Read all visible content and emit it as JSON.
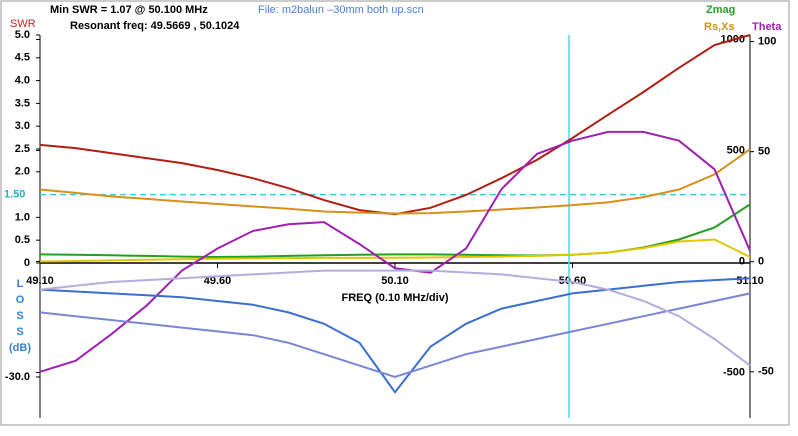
{
  "chart_data": {
    "type": "line",
    "title": "Min SWR =   1.07 @  50.100 MHz",
    "subtitle": "Resonant freq:  49.5669 , 50.1024",
    "file_label": "File: m2balun –30mm both up.scn",
    "x_label": "FREQ (0.10 MHz/div)",
    "y_label": "SWR",
    "loss_label": [
      "L",
      "O",
      "S",
      "S",
      "(dB)"
    ],
    "axis_names": [
      {
        "text": "Zmag",
        "color": "#22a022"
      },
      {
        "text": "Rs,Xs",
        "color": "#d8901c"
      },
      {
        "text": "Theta",
        "color": "#a020b0"
      }
    ],
    "x": [
      49.1,
      49.2,
      49.3,
      49.4,
      49.5,
      49.6,
      49.7,
      49.8,
      49.9,
      50.0,
      50.1,
      50.2,
      50.3,
      50.4,
      50.5,
      50.6,
      50.7,
      50.8,
      50.9,
      51.0,
      51.1
    ],
    "xlim": [
      49.1,
      51.1
    ],
    "xticks": [
      {
        "value": 49.1,
        "label": "49.10"
      },
      {
        "value": 49.6,
        "label": "49.60"
      },
      {
        "value": 50.1,
        "label": "50.10"
      },
      {
        "value": 50.6,
        "label": "50.60"
      },
      {
        "value": 51.1,
        "label": "51.10"
      }
    ],
    "ylim": [
      -3.4,
      5
    ],
    "yticks": [
      {
        "value": 5,
        "label": "5.0"
      },
      4.5,
      {
        "value": 4,
        "label": "4.0"
      },
      3.5,
      {
        "value": 3,
        "label": "3.0"
      },
      2.5,
      {
        "value": 2,
        "label": "2.0"
      },
      {
        "value": 1,
        "label": "1.0"
      },
      0.5,
      0
    ],
    "y2lim": [
      -705,
      1020
    ],
    "y2ticks": [
      1000,
      500,
      0,
      -500
    ],
    "y3lim": [
      -71,
      103
    ],
    "y3ticks": [
      100,
      50,
      0,
      -50
    ],
    "loss_lim": [
      -40.8,
      0
    ],
    "loss_ticks": [
      {
        "value": -30,
        "label": "-30.0"
      }
    ],
    "swr_ref": {
      "value": 1.5,
      "label": "1.50"
    },
    "marker_x": 50.59,
    "series": [
      {
        "name": "SWR",
        "color": "#b01e14",
        "axis": "y",
        "values": [
          2.59,
          2.52,
          2.41,
          2.3,
          2.19,
          2.04,
          1.86,
          1.64,
          1.38,
          1.16,
          1.07,
          1.21,
          1.49,
          1.86,
          2.26,
          2.74,
          3.25,
          3.75,
          4.28,
          4.78,
          5.0
        ]
      },
      {
        "color": "#22a022",
        "axis": "y2",
        "values": [
          32,
          30,
          28,
          25,
          22,
          20,
          22,
          25,
          28,
          30,
          32,
          32,
          30,
          28,
          27,
          30,
          40,
          63,
          99,
          153,
          257
        ]
      },
      {
        "color": "#d8901c",
        "axis": "y2",
        "values": [
          324,
          309,
          293,
          282,
          270,
          259,
          248,
          237,
          225,
          220,
          216,
          218,
          225,
          234,
          243,
          254,
          266,
          290,
          324,
          392,
          505
        ]
      },
      {
        "color": "#e0c800",
        "axis": "y2",
        "values": [
          0,
          2,
          5,
          8,
          10,
          12,
          14,
          15,
          16,
          16,
          17,
          18,
          20,
          22,
          25,
          30,
          40,
          60,
          90,
          99,
          20
        ]
      },
      {
        "color": "#a020b0",
        "axis": "y3",
        "values": [
          -50,
          -45,
          -33,
          -20,
          -4,
          6,
          14,
          17,
          18,
          8,
          -3,
          -5,
          6,
          33,
          49,
          55,
          59,
          59,
          55,
          42,
          5
        ]
      },
      {
        "color": "#3a6fd0",
        "axis": "loss",
        "values": [
          -7,
          -7.5,
          -8,
          -8.5,
          -9,
          -10,
          -11,
          -13,
          -16,
          -21,
          -34,
          -22,
          -16,
          -12,
          -10,
          -8,
          -7,
          -6,
          -5,
          -4.5,
          -4
        ]
      },
      {
        "color": "#7a86d4",
        "axis": "loss",
        "values": [
          -13,
          -14,
          -15,
          -16,
          -17,
          -18,
          -19,
          -21,
          -24,
          -27,
          -30,
          -27,
          -24,
          -22,
          -20,
          -18,
          -16,
          -14,
          -12,
          -10,
          -8
        ]
      },
      {
        "color": "#b4acdc",
        "axis": "loss",
        "values": [
          -7,
          -6,
          -5,
          -4.5,
          -4,
          -3.5,
          -3,
          -2.5,
          -2,
          -2,
          -2,
          -2,
          -2.5,
          -3,
          -4,
          -5,
          -7,
          -10,
          -14,
          -20,
          -27
        ]
      }
    ]
  }
}
